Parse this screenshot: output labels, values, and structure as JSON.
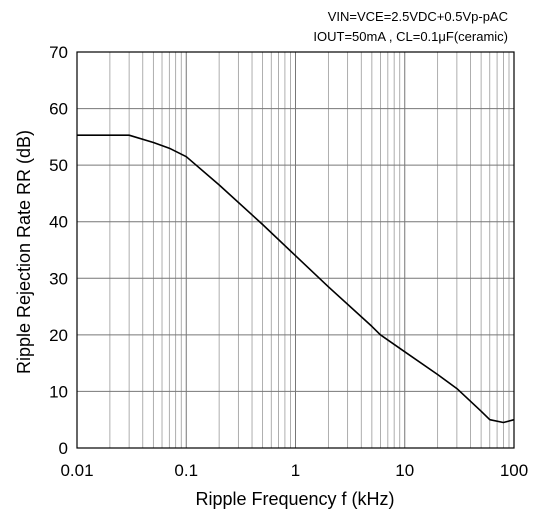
{
  "chart_data": {
    "type": "line",
    "xlabel": "Ripple Frequency f (kHz)",
    "ylabel": "Ripple Rejection Rate RR (dB)",
    "x_scale": "log",
    "xlim": [
      0.01,
      100
    ],
    "ylim": [
      0,
      70
    ],
    "x_ticks": [
      {
        "value": 0.01,
        "label": "0.01"
      },
      {
        "value": 0.1,
        "label": "0.1"
      },
      {
        "value": 1,
        "label": "1"
      },
      {
        "value": 10,
        "label": "10"
      },
      {
        "value": 100,
        "label": "100"
      }
    ],
    "y_ticks": [
      {
        "value": 0,
        "label": "0"
      },
      {
        "value": 10,
        "label": "10"
      },
      {
        "value": 20,
        "label": "20"
      },
      {
        "value": 30,
        "label": "30"
      },
      {
        "value": 40,
        "label": "40"
      },
      {
        "value": 50,
        "label": "50"
      },
      {
        "value": 60,
        "label": "60"
      },
      {
        "value": 70,
        "label": "70"
      }
    ],
    "grid": true,
    "annotations": [
      "VIN=VCE=2.5VDC+0.5Vp-pAC",
      "IOUT=50mA , CL=0.1μF(ceramic)"
    ],
    "series": [
      {
        "x": [
          0.01,
          0.02,
          0.03,
          0.05,
          0.07,
          0.1,
          0.2,
          0.5,
          1,
          2,
          5,
          6,
          10,
          20,
          30,
          50,
          60,
          80,
          100
        ],
        "y": [
          55.3,
          55.3,
          55.3,
          54.0,
          53.0,
          51.5,
          46.5,
          39.5,
          34.0,
          28.5,
          21.5,
          20.0,
          17.0,
          13.0,
          10.5,
          6.5,
          5.0,
          4.5,
          5.0
        ]
      }
    ]
  }
}
